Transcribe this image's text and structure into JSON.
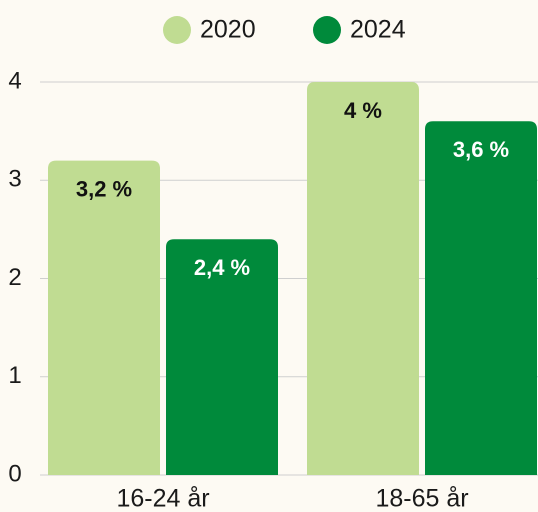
{
  "chart_data": {
    "type": "bar",
    "categories": [
      "16-24 år",
      "18-65 år"
    ],
    "series": [
      {
        "name": "2020",
        "color": "#c0dc92",
        "values": [
          3.2,
          4
        ],
        "value_labels": [
          "3,2 %",
          "4 %"
        ]
      },
      {
        "name": "2024",
        "color": "#008a3b",
        "values": [
          2.4,
          3.6
        ],
        "value_labels": [
          "2,4 %",
          "3,6 %"
        ]
      }
    ],
    "ylim": [
      0,
      4
    ],
    "yticks": [
      0,
      1,
      2,
      3,
      4
    ],
    "grid": true,
    "legend": "top"
  }
}
